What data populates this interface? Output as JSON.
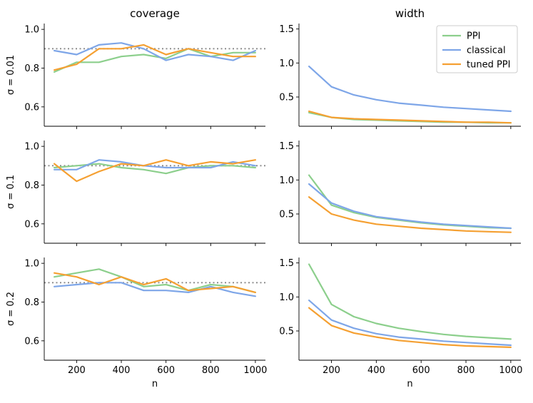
{
  "chart_data": {
    "type": "line",
    "layout": "3 rows x 2 columns of subplots",
    "column_titles": [
      "coverage",
      "width"
    ],
    "row_labels": [
      "σ = 0.01",
      "σ = 0.1",
      "σ = 0.2"
    ],
    "xlabel": "n",
    "x": [
      100,
      200,
      300,
      400,
      500,
      600,
      700,
      800,
      900,
      1000
    ],
    "x_ticks": [
      200,
      400,
      600,
      800,
      1000
    ],
    "x_tick_labels": [
      "200",
      "400",
      "600",
      "800",
      "1000"
    ],
    "legend": {
      "location": "top-right of the first width panel",
      "entries": [
        "PPI",
        "classical",
        "tuned PPI"
      ]
    },
    "colors": {
      "PPI": "#8ccf8c",
      "classical": "#7ea6e8",
      "tuned PPI": "#f5a032",
      "reference": "#888888"
    },
    "coverage_panels": {
      "ylim": [
        0.5,
        1.03
      ],
      "y_ticks": [
        0.6,
        0.8,
        1.0
      ],
      "y_tick_labels": [
        "0.6",
        "0.8",
        "1.0"
      ],
      "reference_line": 0.9
    },
    "width_panels": {
      "ylim": [
        0.07,
        1.58
      ],
      "y_ticks": [
        0.5,
        1.0,
        1.5
      ],
      "y_tick_labels": [
        "0.5",
        "1.0",
        "1.5"
      ]
    },
    "panels": [
      {
        "row": 0,
        "col": 0,
        "metric": "coverage",
        "series": [
          {
            "name": "PPI",
            "values": [
              0.78,
              0.83,
              0.83,
              0.86,
              0.87,
              0.85,
              0.9,
              0.86,
              0.88,
              0.88
            ]
          },
          {
            "name": "classical",
            "values": [
              0.89,
              0.87,
              0.92,
              0.93,
              0.9,
              0.84,
              0.87,
              0.86,
              0.84,
              0.89
            ]
          },
          {
            "name": "tuned PPI",
            "values": [
              0.79,
              0.82,
              0.9,
              0.9,
              0.92,
              0.87,
              0.9,
              0.88,
              0.86,
              0.86
            ]
          }
        ]
      },
      {
        "row": 0,
        "col": 1,
        "metric": "width",
        "series": [
          {
            "name": "PPI",
            "values": [
              0.27,
              0.2,
              0.17,
              0.16,
              0.15,
              0.14,
              0.13,
              0.13,
              0.12,
              0.12
            ]
          },
          {
            "name": "classical",
            "values": [
              0.95,
              0.65,
              0.53,
              0.46,
              0.41,
              0.38,
              0.35,
              0.33,
              0.31,
              0.29
            ]
          },
          {
            "name": "tuned PPI",
            "values": [
              0.29,
              0.2,
              0.18,
              0.17,
              0.16,
              0.15,
              0.14,
              0.13,
              0.13,
              0.12
            ]
          }
        ]
      },
      {
        "row": 1,
        "col": 0,
        "metric": "coverage",
        "series": [
          {
            "name": "PPI",
            "values": [
              0.89,
              0.9,
              0.91,
              0.89,
              0.88,
              0.86,
              0.89,
              0.9,
              0.9,
              0.89
            ]
          },
          {
            "name": "classical",
            "values": [
              0.88,
              0.88,
              0.93,
              0.92,
              0.9,
              0.89,
              0.89,
              0.89,
              0.92,
              0.9
            ]
          },
          {
            "name": "tuned PPI",
            "values": [
              0.91,
              0.82,
              0.87,
              0.91,
              0.9,
              0.93,
              0.9,
              0.92,
              0.91,
              0.93
            ]
          }
        ]
      },
      {
        "row": 1,
        "col": 1,
        "metric": "width",
        "series": [
          {
            "name": "PPI",
            "values": [
              1.07,
              0.63,
              0.52,
              0.45,
              0.41,
              0.37,
              0.34,
              0.32,
              0.3,
              0.29
            ]
          },
          {
            "name": "classical",
            "values": [
              0.94,
              0.66,
              0.54,
              0.46,
              0.42,
              0.38,
              0.35,
              0.33,
              0.31,
              0.29
            ]
          },
          {
            "name": "tuned PPI",
            "values": [
              0.75,
              0.5,
              0.41,
              0.35,
              0.32,
              0.29,
              0.27,
              0.25,
              0.24,
              0.23
            ]
          }
        ]
      },
      {
        "row": 2,
        "col": 0,
        "metric": "coverage",
        "series": [
          {
            "name": "PPI",
            "values": [
              0.93,
              0.95,
              0.97,
              0.93,
              0.88,
              0.89,
              0.86,
              0.89,
              0.88,
              0.85
            ]
          },
          {
            "name": "classical",
            "values": [
              0.88,
              0.89,
              0.9,
              0.9,
              0.86,
              0.86,
              0.85,
              0.88,
              0.85,
              0.83
            ]
          },
          {
            "name": "tuned PPI",
            "values": [
              0.95,
              0.93,
              0.89,
              0.93,
              0.89,
              0.92,
              0.86,
              0.87,
              0.88,
              0.85
            ]
          }
        ]
      },
      {
        "row": 2,
        "col": 1,
        "metric": "width",
        "series": [
          {
            "name": "PPI",
            "values": [
              1.48,
              0.89,
              0.71,
              0.61,
              0.54,
              0.49,
              0.45,
              0.42,
              0.4,
              0.38
            ]
          },
          {
            "name": "classical",
            "values": [
              0.95,
              0.66,
              0.54,
              0.46,
              0.41,
              0.38,
              0.35,
              0.33,
              0.31,
              0.29
            ]
          },
          {
            "name": "tuned PPI",
            "values": [
              0.84,
              0.58,
              0.47,
              0.41,
              0.36,
              0.33,
              0.3,
              0.28,
              0.27,
              0.26
            ]
          }
        ]
      }
    ]
  }
}
